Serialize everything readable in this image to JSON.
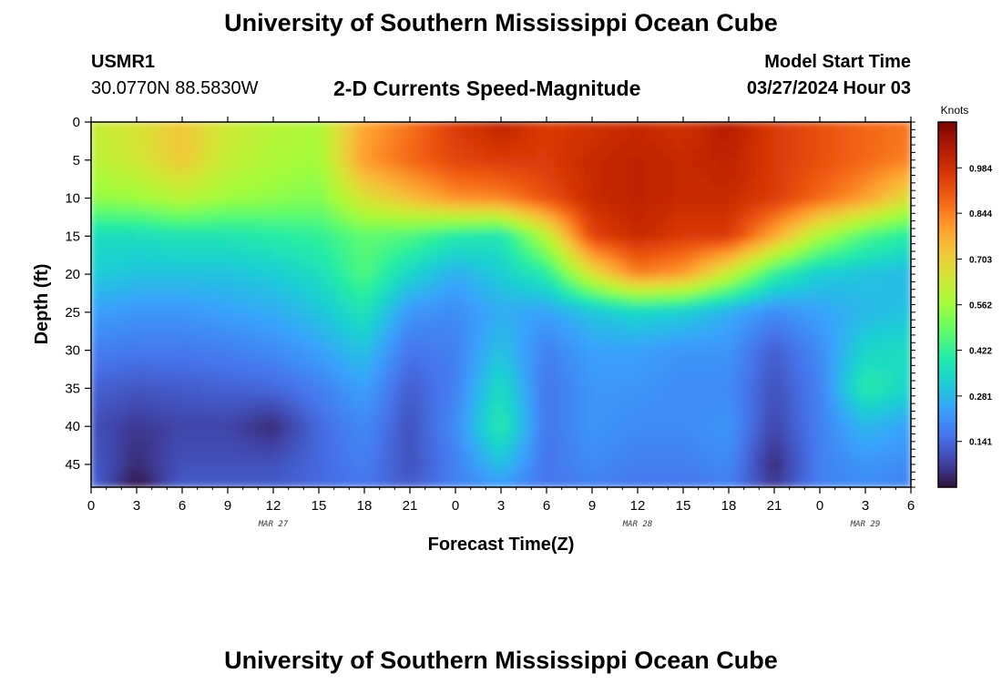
{
  "page": {
    "title_top": "University of Southern Mississippi Ocean Cube",
    "title_bottom": "University of Southern Mississippi Ocean Cube",
    "station_id": "USMR1",
    "station_location": "30.0770N  88.5830W",
    "model_start_label": "Model Start Time",
    "model_start_value": "03/27/2024 Hour 03"
  },
  "chart_data": {
    "type": "heatmap",
    "title": "2-D Currents Speed-Magnitude",
    "xlabel": "Forecast Time(Z)",
    "ylabel": "Depth (ft)",
    "colorbar_label": "Knots",
    "xlim": [
      0,
      54
    ],
    "ylim": [
      0,
      48
    ],
    "y_reversed": true,
    "x_ticks": [
      0,
      3,
      6,
      9,
      12,
      15,
      18,
      21,
      24,
      27,
      30,
      33,
      36,
      39,
      42,
      45,
      48,
      51,
      54
    ],
    "x_tick_labels": [
      "0",
      "3",
      "6",
      "9",
      "12",
      "15",
      "18",
      "21",
      "0",
      "3",
      "6",
      "9",
      "12",
      "15",
      "18",
      "21",
      "0",
      "3",
      "6"
    ],
    "y_ticks": [
      0,
      5,
      10,
      15,
      20,
      25,
      30,
      35,
      40,
      45
    ],
    "y_tick_labels": [
      "0",
      "5",
      "10",
      "15",
      "20",
      "25",
      "30",
      "35",
      "40",
      "45"
    ],
    "day_labels": [
      {
        "x": 12,
        "label": "MAR 27"
      },
      {
        "x": 36,
        "label": "MAR 28"
      },
      {
        "x": 51,
        "label": "MAR 29"
      }
    ],
    "colorbar_range": [
      0.0,
      1.125
    ],
    "colorbar_ticks": [
      0.141,
      0.281,
      0.422,
      0.562,
      0.703,
      0.844,
      0.984
    ],
    "colorbar_tick_labels": [
      "0.141",
      "0.281",
      "0.422",
      "0.562",
      "0.703",
      "0.844",
      "0.984"
    ],
    "colormap": [
      "#30123b",
      "#4145ab",
      "#4675ed",
      "#39a2fc",
      "#1bcfd4",
      "#24eca6",
      "#61fc6c",
      "#a4fc3b",
      "#d1e834",
      "#f3c63a",
      "#fe9b2d",
      "#f36315",
      "#d93806",
      "#b11901",
      "#7a0403"
    ],
    "x_hours": [
      0,
      3,
      6,
      9,
      12,
      15,
      18,
      21,
      24,
      27,
      30,
      33,
      36,
      39,
      42,
      45,
      48,
      51,
      54
    ],
    "depths_ft": [
      0,
      5,
      10,
      15,
      20,
      25,
      30,
      35,
      40,
      45,
      48
    ],
    "speed_knots": [
      [
        0.62,
        0.66,
        0.72,
        0.64,
        0.6,
        0.58,
        0.78,
        0.86,
        0.96,
        1.02,
        0.96,
        0.98,
        1.0,
        0.98,
        1.04,
        0.96,
        0.92,
        0.88,
        0.86
      ],
      [
        0.6,
        0.64,
        0.72,
        0.62,
        0.58,
        0.56,
        0.8,
        0.88,
        0.94,
        0.96,
        0.96,
        1.0,
        1.02,
        1.0,
        1.02,
        0.96,
        0.92,
        0.88,
        0.84
      ],
      [
        0.54,
        0.56,
        0.6,
        0.56,
        0.54,
        0.52,
        0.66,
        0.74,
        0.82,
        0.84,
        0.92,
        1.0,
        1.02,
        1.0,
        1.0,
        0.96,
        0.88,
        0.8,
        0.66
      ],
      [
        0.36,
        0.36,
        0.38,
        0.38,
        0.4,
        0.42,
        0.48,
        0.46,
        0.4,
        0.38,
        0.6,
        0.94,
        1.0,
        0.96,
        0.96,
        0.78,
        0.58,
        0.46,
        0.4
      ],
      [
        0.32,
        0.3,
        0.3,
        0.3,
        0.32,
        0.36,
        0.46,
        0.34,
        0.26,
        0.32,
        0.4,
        0.66,
        0.84,
        0.8,
        0.62,
        0.42,
        0.32,
        0.3,
        0.28
      ],
      [
        0.24,
        0.22,
        0.22,
        0.24,
        0.26,
        0.3,
        0.38,
        0.22,
        0.2,
        0.26,
        0.24,
        0.3,
        0.34,
        0.32,
        0.26,
        0.2,
        0.24,
        0.28,
        0.3
      ],
      [
        0.18,
        0.17,
        0.17,
        0.18,
        0.2,
        0.24,
        0.3,
        0.16,
        0.18,
        0.3,
        0.18,
        0.24,
        0.24,
        0.22,
        0.22,
        0.12,
        0.2,
        0.34,
        0.36
      ],
      [
        0.13,
        0.11,
        0.12,
        0.13,
        0.14,
        0.18,
        0.24,
        0.12,
        0.18,
        0.36,
        0.16,
        0.22,
        0.22,
        0.2,
        0.2,
        0.1,
        0.18,
        0.4,
        0.34
      ],
      [
        0.1,
        0.06,
        0.08,
        0.08,
        0.04,
        0.14,
        0.2,
        0.1,
        0.2,
        0.4,
        0.16,
        0.22,
        0.2,
        0.2,
        0.22,
        0.08,
        0.18,
        0.28,
        0.24
      ],
      [
        0.12,
        0.04,
        0.1,
        0.1,
        0.1,
        0.14,
        0.18,
        0.1,
        0.18,
        0.3,
        0.16,
        0.2,
        0.18,
        0.18,
        0.2,
        0.04,
        0.18,
        0.22,
        0.2
      ],
      [
        0.14,
        0.0,
        0.12,
        0.12,
        0.12,
        0.14,
        0.16,
        0.12,
        0.18,
        0.22,
        0.16,
        0.18,
        0.16,
        0.16,
        0.18,
        0.06,
        0.18,
        0.2,
        0.18
      ]
    ]
  }
}
